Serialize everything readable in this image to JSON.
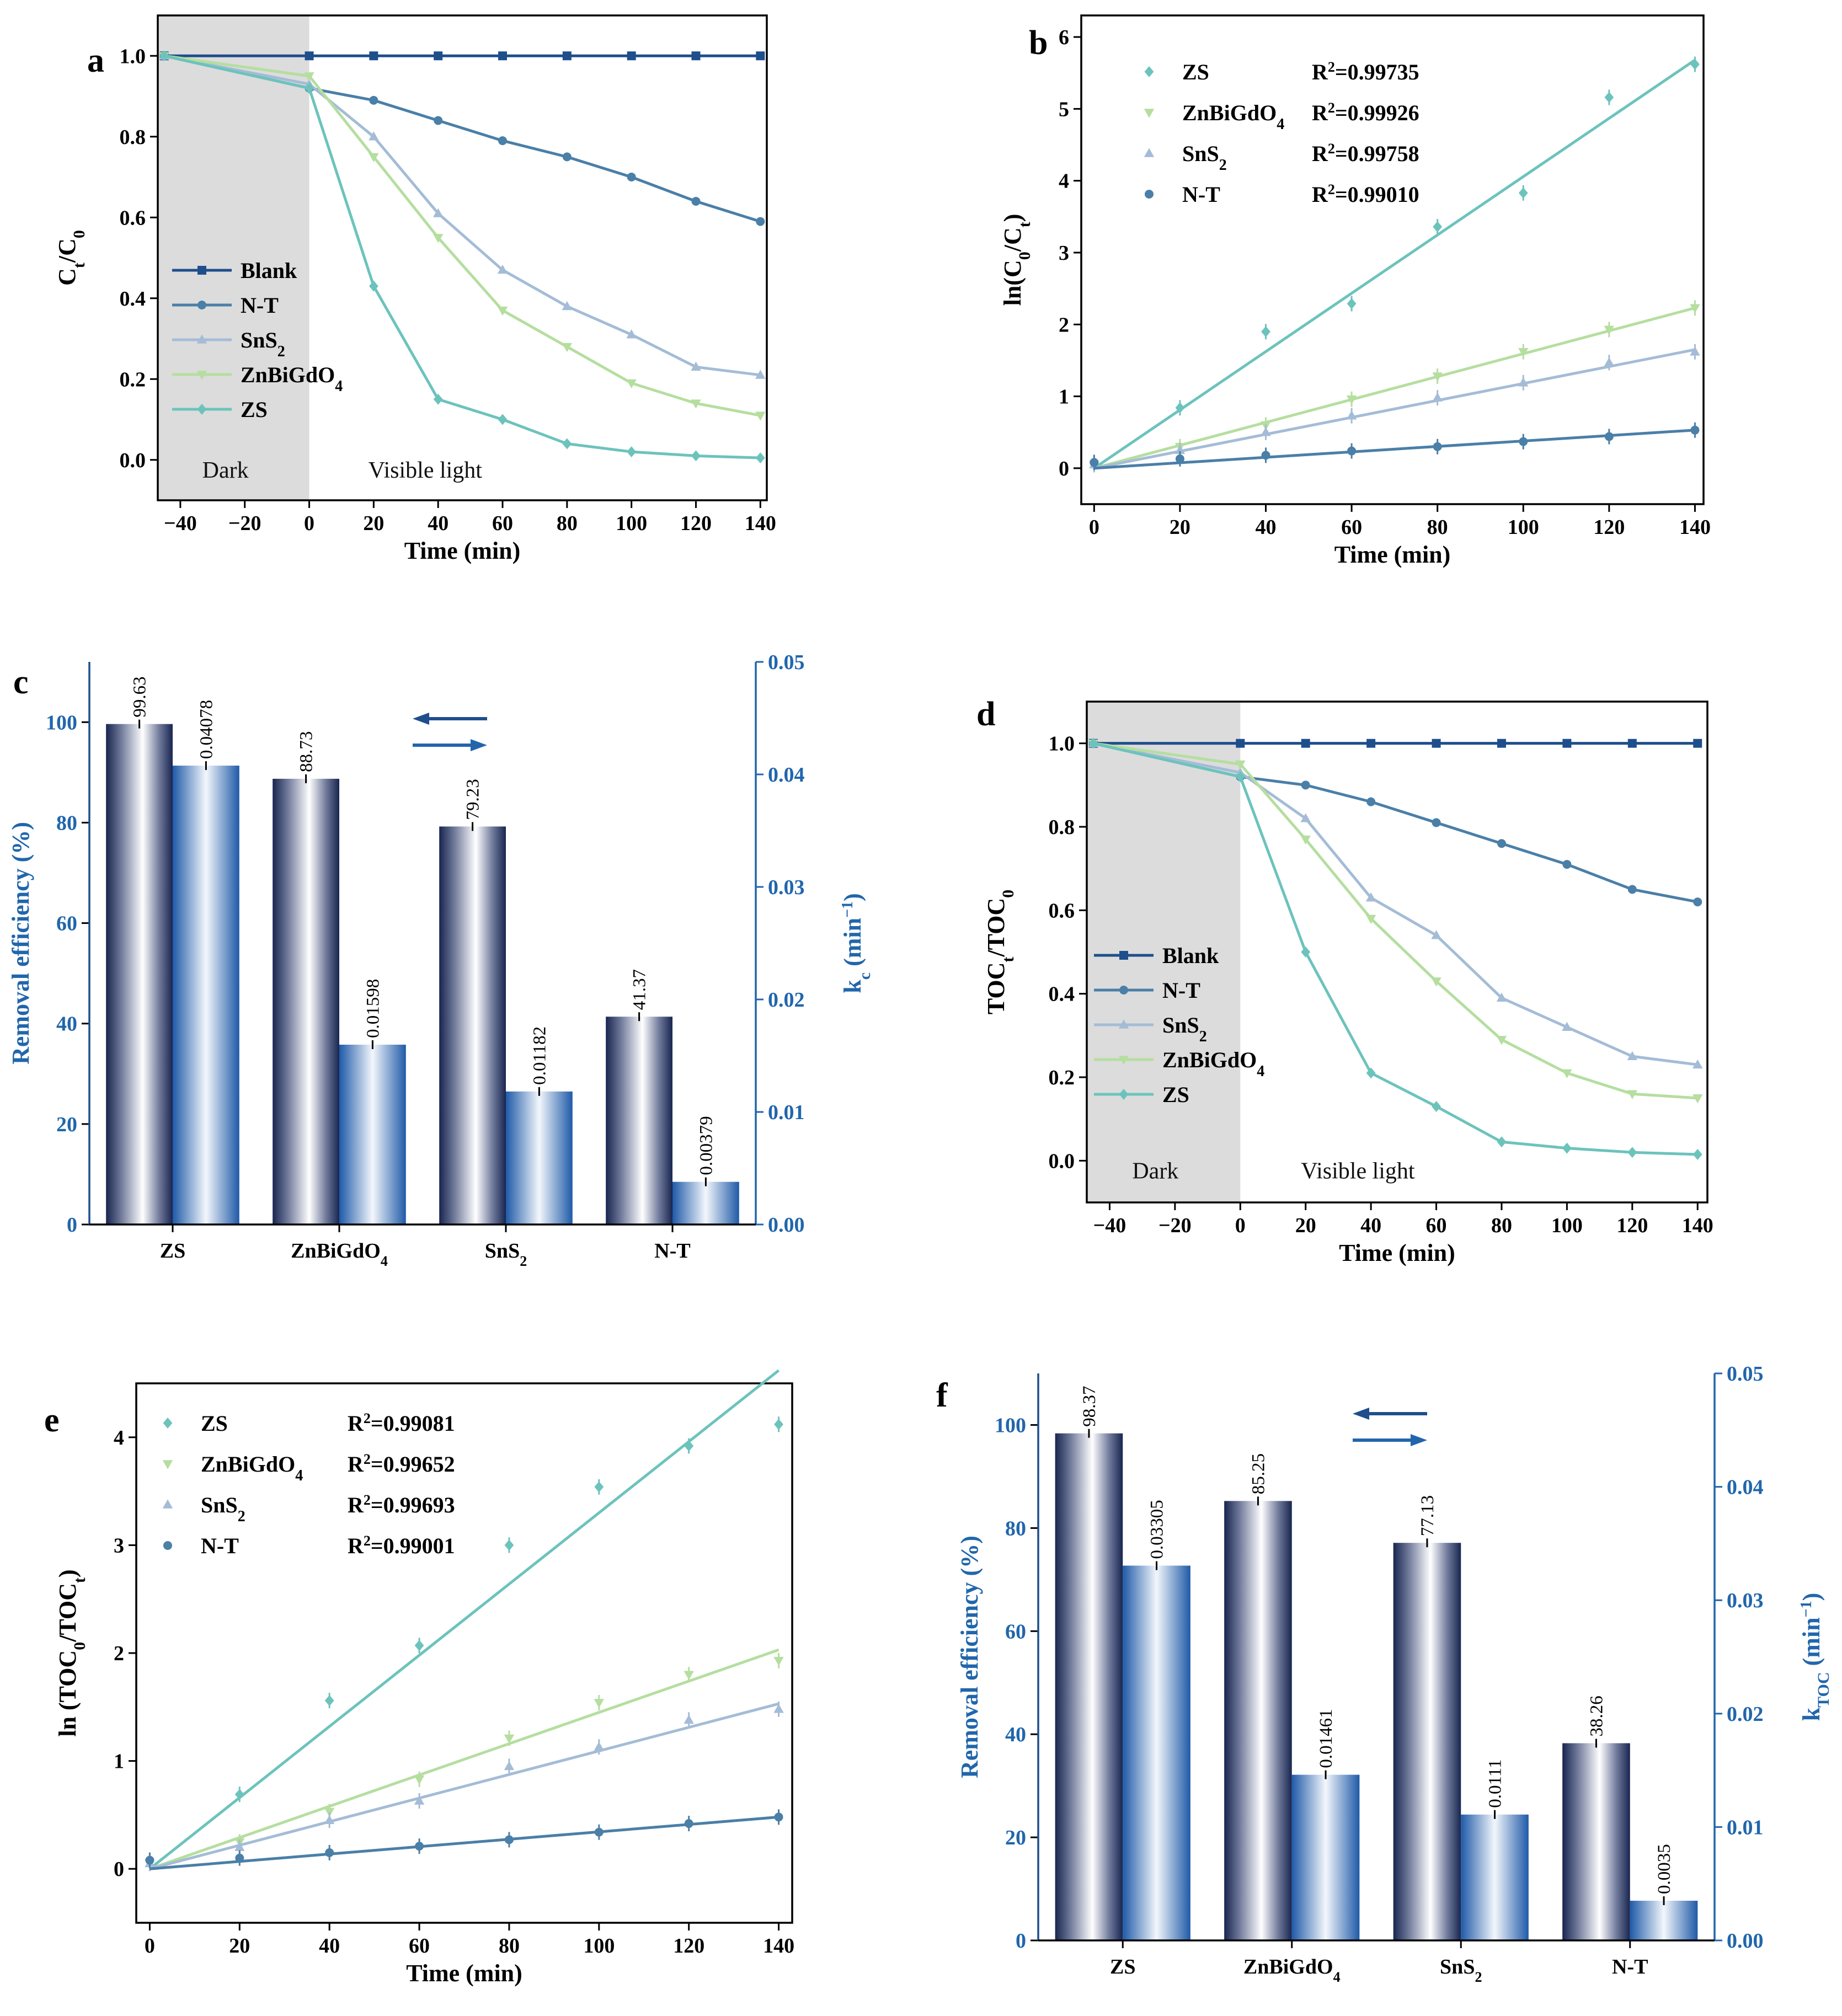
{
  "chart_data": [
    {
      "id": "a",
      "panel_label": "a",
      "type": "line",
      "xlabel": "Time (min)",
      "ylabel": "Ct/C0",
      "ylabel_main": "C",
      "ylabel_sub1": "t",
      "ylabel_slash": "/C",
      "ylabel_sub2": "0",
      "xlim": [
        -47,
        142
      ],
      "ylim": [
        -0.1,
        1.1
      ],
      "xticks": [
        -40,
        -20,
        0,
        20,
        40,
        60,
        80,
        100,
        120,
        140
      ],
      "xtick_labels": [
        "−40",
        "−20",
        "0",
        "20",
        "40",
        "60",
        "80",
        "100",
        "120",
        "140"
      ],
      "yticks": [
        0.0,
        0.2,
        0.4,
        0.6,
        0.8,
        1.0
      ],
      "ytick_labels": [
        "0.0",
        "0.2",
        "0.4",
        "0.6",
        "0.8",
        "1.0"
      ],
      "dark_region": [
        -47,
        0
      ],
      "annotations": {
        "dark": "Dark",
        "light": "Visible light"
      },
      "legend_position": "center-left",
      "x": [
        -45,
        0,
        20,
        40,
        60,
        80,
        100,
        120,
        140
      ],
      "series": [
        {
          "name": "Blank",
          "name_main": "Blank",
          "name_sub": "",
          "color": "#1f4e8c",
          "marker": "square",
          "values": [
            1.0,
            1.0,
            1.0,
            1.0,
            1.0,
            1.0,
            1.0,
            1.0,
            1.0
          ],
          "extra_x": [
            20,
            40,
            60,
            80,
            100,
            120,
            140
          ]
        },
        {
          "name": "N-T",
          "name_main": "N-T",
          "name_sub": "",
          "color": "#4a7fa8",
          "marker": "circle",
          "values": [
            1.0,
            0.92,
            0.89,
            0.84,
            0.79,
            0.75,
            0.7,
            0.64,
            0.59
          ]
        },
        {
          "name": "SnS2",
          "name_main": "SnS",
          "name_sub": "2",
          "color": "#a4bcd6",
          "marker": "triangle",
          "values": [
            1.0,
            0.93,
            0.8,
            0.61,
            0.47,
            0.38,
            0.31,
            0.23,
            0.21
          ]
        },
        {
          "name": "ZnBiGdO4",
          "name_main": "ZnBiGdO",
          "name_sub": "4",
          "color": "#b5de9f",
          "marker": "triangle-down",
          "values": [
            1.0,
            0.95,
            0.75,
            0.55,
            0.37,
            0.28,
            0.19,
            0.14,
            0.11
          ]
        },
        {
          "name": "ZS",
          "name_main": "ZS",
          "name_sub": "",
          "color": "#6cc3bc",
          "marker": "diamond",
          "values": [
            1.0,
            0.92,
            0.43,
            0.15,
            0.1,
            0.04,
            0.02,
            0.01,
            0.005
          ]
        }
      ]
    },
    {
      "id": "b",
      "panel_label": "b",
      "type": "scatter",
      "xlabel": "Time (min)",
      "ylabel": "ln(C0/Ct)",
      "ylabel_main": "ln(C",
      "ylabel_sub1": "0",
      "ylabel_slash": "/C",
      "ylabel_sub2": "t",
      "ylabel_close": ")",
      "xlim": [
        -3,
        142
      ],
      "ylim": [
        -0.5,
        6.3
      ],
      "xticks": [
        0,
        20,
        40,
        60,
        80,
        100,
        120,
        140
      ],
      "xtick_labels": [
        "0",
        "20",
        "40",
        "60",
        "80",
        "100",
        "120",
        "140"
      ],
      "yticks": [
        0,
        1,
        2,
        3,
        4,
        5,
        6
      ],
      "ytick_labels": [
        "0",
        "1",
        "2",
        "3",
        "4",
        "5",
        "6"
      ],
      "legend_position": "top-left",
      "x": [
        0,
        20,
        40,
        60,
        80,
        100,
        120,
        140
      ],
      "series": [
        {
          "name": "ZS",
          "name_main": "ZS",
          "name_sub": "",
          "r2": "R2=0.99735",
          "r2_value": "=0.99735",
          "color": "#6cc3bc",
          "marker": "diamond",
          "values": [
            0.08,
            0.84,
            1.9,
            2.29,
            3.36,
            3.83,
            5.16,
            5.62
          ],
          "fit_end": 5.68
        },
        {
          "name": "ZnBiGdO4",
          "name_main": "ZnBiGdO",
          "name_sub": "4",
          "r2": "R2=0.99926",
          "r2_value": "=0.99926",
          "color": "#b5de9f",
          "marker": "triangle-down",
          "values": [
            0.05,
            0.3,
            0.6,
            0.96,
            1.28,
            1.62,
            1.93,
            2.23
          ],
          "fit_end": 2.23
        },
        {
          "name": "SnS2",
          "name_main": "SnS",
          "name_sub": "2",
          "r2": "R2=0.99758",
          "r2_value": "=0.99758",
          "color": "#a4bcd6",
          "marker": "triangle",
          "values": [
            0.05,
            0.25,
            0.5,
            0.73,
            0.98,
            1.19,
            1.47,
            1.62
          ],
          "fit_end": 1.65
        },
        {
          "name": "N-T",
          "name_main": "N-T",
          "name_sub": "",
          "r2": "R2=0.99010",
          "r2_value": "=0.99010",
          "color": "#4a7fa8",
          "marker": "circle",
          "values": [
            0.08,
            0.13,
            0.18,
            0.24,
            0.3,
            0.37,
            0.44,
            0.53
          ],
          "fit_end": 0.53
        }
      ]
    },
    {
      "id": "c",
      "panel_label": "c",
      "type": "bar",
      "categories": [
        "ZS",
        "ZnBiGdO4",
        "SnS2",
        "N-T"
      ],
      "category_main": [
        "ZS",
        "ZnBiGdO",
        "SnS",
        "N-T"
      ],
      "category_sub": [
        "",
        "4",
        "2",
        ""
      ],
      "ylabel": "Removal efficiency (%)",
      "y2label_main": "k",
      "y2label_sub": "c",
      "y2label_unit": " (min",
      "y2label_sup": "−1",
      "y2label_close": ")",
      "ylim": [
        0,
        112
      ],
      "y2lim": [
        0,
        0.05
      ],
      "yticks": [
        0,
        20,
        40,
        60,
        80,
        100
      ],
      "ytick_labels": [
        "0",
        "20",
        "40",
        "60",
        "80",
        "100"
      ],
      "y2ticks": [
        0,
        0.01,
        0.02,
        0.03,
        0.04,
        0.05
      ],
      "y2tick_labels": [
        "0.00",
        "0.01",
        "0.02",
        "0.03",
        "0.04",
        "0.05"
      ],
      "series": [
        {
          "name": "Removal efficiency",
          "axis": "left",
          "values": [
            99.63,
            88.73,
            79.23,
            41.37
          ],
          "labels": [
            "99.63",
            "88.73",
            "79.23",
            "41.37"
          ]
        },
        {
          "name": "kc",
          "axis": "right",
          "values": [
            0.04078,
            0.01598,
            0.01182,
            0.00379
          ],
          "labels": [
            "0.04078",
            "0.01598",
            "0.01182",
            "0.00379"
          ]
        }
      ]
    },
    {
      "id": "d",
      "panel_label": "d",
      "type": "line",
      "xlabel": "Time (min)",
      "ylabel": "TOCt/TOC0",
      "ylabel_main": "TOC",
      "ylabel_sub1": "t",
      "ylabel_slash": "/TOC",
      "ylabel_sub2": "0",
      "xlim": [
        -47,
        143
      ],
      "ylim": [
        -0.1,
        1.1
      ],
      "xticks": [
        -40,
        -20,
        0,
        20,
        40,
        60,
        80,
        100,
        120,
        140
      ],
      "xtick_labels": [
        "−40",
        "−20",
        "0",
        "20",
        "40",
        "60",
        "80",
        "100",
        "120",
        "140"
      ],
      "yticks": [
        0.0,
        0.2,
        0.4,
        0.6,
        0.8,
        1.0
      ],
      "ytick_labels": [
        "0.0",
        "0.2",
        "0.4",
        "0.6",
        "0.8",
        "1.0"
      ],
      "dark_region": [
        -47,
        0
      ],
      "annotations": {
        "dark": "Dark",
        "light": "Visible light"
      },
      "legend_position": "center-left",
      "x": [
        -45,
        0,
        20,
        40,
        60,
        80,
        100,
        120,
        140
      ],
      "series": [
        {
          "name": "Blank",
          "name_main": "Blank",
          "name_sub": "",
          "color": "#1f4e8c",
          "marker": "square",
          "values": [
            1.0,
            1.0,
            1.0,
            1.0,
            1.0,
            1.0,
            1.0,
            1.0,
            1.0
          ]
        },
        {
          "name": "N-T",
          "name_main": "N-T",
          "name_sub": "",
          "color": "#4a7fa8",
          "marker": "circle",
          "values": [
            1.0,
            0.92,
            0.9,
            0.86,
            0.81,
            0.76,
            0.71,
            0.65,
            0.62
          ]
        },
        {
          "name": "SnS2",
          "name_main": "SnS",
          "name_sub": "2",
          "color": "#a4bcd6",
          "marker": "triangle",
          "values": [
            1.0,
            0.93,
            0.82,
            0.63,
            0.54,
            0.39,
            0.32,
            0.25,
            0.23
          ]
        },
        {
          "name": "ZnBiGdO4",
          "name_main": "ZnBiGdO",
          "name_sub": "4",
          "color": "#b5de9f",
          "marker": "triangle-down",
          "values": [
            1.0,
            0.95,
            0.77,
            0.58,
            0.43,
            0.29,
            0.21,
            0.16,
            0.15
          ]
        },
        {
          "name": "ZS",
          "name_main": "ZS",
          "name_sub": "",
          "color": "#6cc3bc",
          "marker": "diamond",
          "values": [
            1.0,
            0.92,
            0.5,
            0.21,
            0.13,
            0.045,
            0.03,
            0.02,
            0.015
          ]
        }
      ]
    },
    {
      "id": "e",
      "panel_label": "e",
      "type": "scatter",
      "xlabel": "Time (min)",
      "ylabel": "ln (TOC0/TOCt)",
      "ylabel_main": "ln (TOC",
      "ylabel_sub1": "0",
      "ylabel_slash": "/TOC",
      "ylabel_sub2": "t",
      "ylabel_close": ")",
      "xlim": [
        -3,
        143
      ],
      "ylim": [
        -0.5,
        4.5
      ],
      "xticks": [
        0,
        20,
        40,
        60,
        80,
        100,
        120,
        140
      ],
      "xtick_labels": [
        "0",
        "20",
        "40",
        "60",
        "80",
        "100",
        "120",
        "140"
      ],
      "yticks": [
        0,
        1,
        2,
        3,
        4
      ],
      "ytick_labels": [
        "0",
        "1",
        "2",
        "3",
        "4"
      ],
      "legend_position": "top-left",
      "x": [
        0,
        20,
        40,
        60,
        80,
        100,
        120,
        140
      ],
      "series": [
        {
          "name": "ZS",
          "name_main": "ZS",
          "name_sub": "",
          "r2": "R2=0.99081",
          "r2_value": "=0.99081",
          "color": "#6cc3bc",
          "marker": "diamond",
          "values": [
            0.08,
            0.69,
            1.56,
            2.07,
            3.0,
            3.54,
            3.92,
            4.12
          ],
          "fit_end": 4.62
        },
        {
          "name": "ZnBiGdO4",
          "name_main": "ZnBiGdO",
          "name_sub": "4",
          "r2": "R2=0.99652",
          "r2_value": "=0.99652",
          "color": "#b5de9f",
          "marker": "triangle-down",
          "values": [
            0.05,
            0.25,
            0.53,
            0.83,
            1.21,
            1.54,
            1.8,
            1.93
          ],
          "fit_end": 2.03
        },
        {
          "name": "SnS2",
          "name_main": "SnS",
          "name_sub": "2",
          "r2": "R2=0.99693",
          "r2_value": "=0.99693",
          "color": "#a4bcd6",
          "marker": "triangle",
          "values": [
            0.05,
            0.2,
            0.45,
            0.63,
            0.95,
            1.13,
            1.38,
            1.48
          ],
          "fit_end": 1.53
        },
        {
          "name": "N-T",
          "name_main": "N-T",
          "name_sub": "",
          "r2": "R2=0.99001",
          "r2_value": "=0.99001",
          "color": "#4a7fa8",
          "marker": "circle",
          "values": [
            0.08,
            0.1,
            0.15,
            0.21,
            0.27,
            0.34,
            0.42,
            0.48
          ],
          "fit_end": 0.48
        }
      ]
    },
    {
      "id": "f",
      "panel_label": "f",
      "type": "bar",
      "categories": [
        "ZS",
        "ZnBiGdO4",
        "SnS2",
        "N-T"
      ],
      "category_main": [
        "ZS",
        "ZnBiGdO",
        "SnS",
        "N-T"
      ],
      "category_sub": [
        "",
        "4",
        "2",
        ""
      ],
      "ylabel": "Removal efficiency (%)",
      "y2label_main": "k",
      "y2label_sub": "TOC",
      "y2label_unit": " (min",
      "y2label_sup": "−1",
      "y2label_close": ")",
      "ylim": [
        0,
        110
      ],
      "y2lim": [
        0,
        0.05
      ],
      "yticks": [
        0,
        20,
        40,
        60,
        80,
        100
      ],
      "ytick_labels": [
        "0",
        "20",
        "40",
        "60",
        "80",
        "100"
      ],
      "y2ticks": [
        0,
        0.01,
        0.02,
        0.03,
        0.04,
        0.05
      ],
      "y2tick_labels": [
        "0.00",
        "0.01",
        "0.02",
        "0.03",
        "0.04",
        "0.05"
      ],
      "series": [
        {
          "name": "Removal efficiency",
          "axis": "left",
          "values": [
            98.37,
            85.25,
            77.13,
            38.26
          ],
          "labels": [
            "98.37",
            "85.25",
            "77.13",
            "38.26"
          ]
        },
        {
          "name": "kTOC",
          "axis": "right",
          "values": [
            0.03305,
            0.01461,
            0.0111,
            0.0035
          ],
          "labels": [
            "0.03305",
            "0.01461",
            "0.0111",
            "0.0035"
          ]
        }
      ]
    }
  ]
}
